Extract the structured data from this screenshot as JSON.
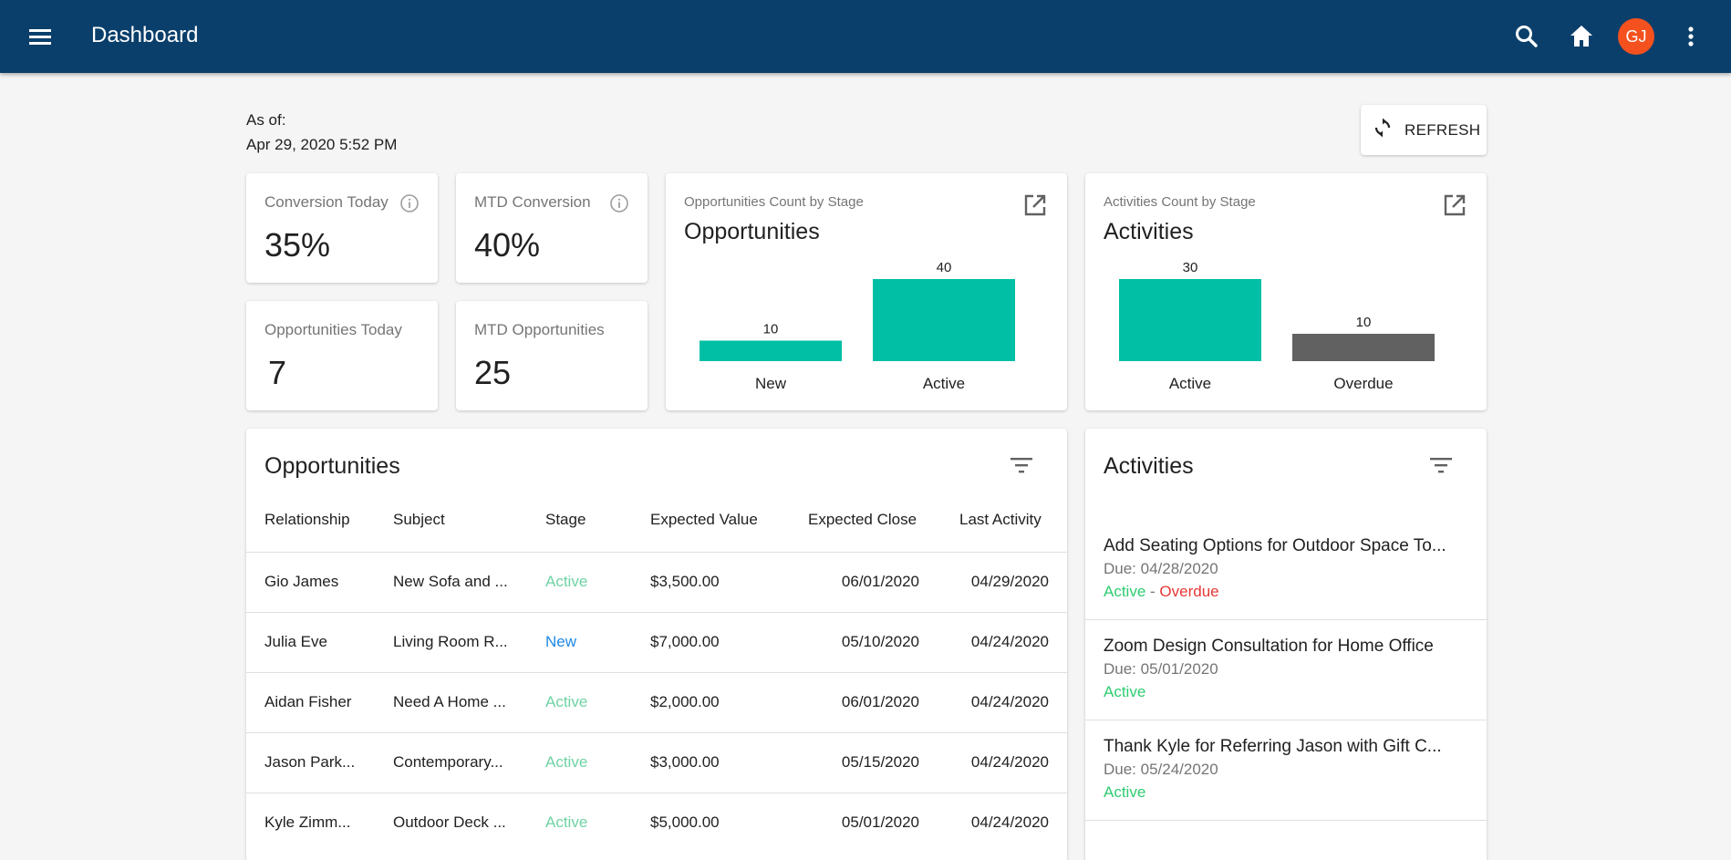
{
  "app": {
    "title": "Dashboard",
    "avatar_initials": "GJ"
  },
  "header": {
    "as_of_label": "As of:",
    "as_of_value": "Apr 29, 2020 5:52 PM",
    "refresh_label": "REFRESH"
  },
  "stats": {
    "conversion_today": {
      "label": "Conversion Today",
      "value": "35%"
    },
    "mtd_conversion": {
      "label": "MTD Conversion",
      "value": "40%"
    },
    "opportunities_today": {
      "label": "Opportunities Today",
      "value": "7"
    },
    "mtd_opportunities": {
      "label": "MTD Opportunities",
      "value": "25"
    }
  },
  "opp_chart": {
    "subtitle": "Opportunities Count by Stage",
    "title": "Opportunities"
  },
  "act_chart": {
    "subtitle": "Activities Count by Stage",
    "title": "Activities"
  },
  "chart_data": [
    {
      "type": "bar",
      "title": "Opportunities",
      "subtitle": "Opportunities Count by Stage",
      "categories": [
        "New",
        "Active"
      ],
      "values": [
        10,
        40
      ],
      "colors": [
        "#00bfa5",
        "#00bfa5"
      ],
      "ylim": [
        0,
        40
      ],
      "grid": false
    },
    {
      "type": "bar",
      "title": "Activities",
      "subtitle": "Activities Count by Stage",
      "categories": [
        "Active",
        "Overdue"
      ],
      "values": [
        30,
        10
      ],
      "colors": [
        "#00bfa5",
        "#616161"
      ],
      "ylim": [
        0,
        30
      ],
      "grid": false
    }
  ],
  "opportunities": {
    "title": "Opportunities",
    "columns": [
      "Relationship",
      "Subject",
      "Stage",
      "Expected Value",
      "Expected Close",
      "Last Activity"
    ],
    "rows": [
      {
        "relationship": "Gio James",
        "subject": "New Sofa and ...",
        "stage": "Active",
        "value": "$3,500.00",
        "close": "06/01/2020",
        "last": "04/29/2020"
      },
      {
        "relationship": "Julia Eve",
        "subject": "Living Room R...",
        "stage": "New",
        "value": "$7,000.00",
        "close": "05/10/2020",
        "last": "04/24/2020"
      },
      {
        "relationship": "Aidan Fisher",
        "subject": "Need A Home ...",
        "stage": "Active",
        "value": "$2,000.00",
        "close": "06/01/2020",
        "last": "04/24/2020"
      },
      {
        "relationship": "Jason Park...",
        "subject": "Contemporary...",
        "stage": "Active",
        "value": "$3,000.00",
        "close": "05/15/2020",
        "last": "04/24/2020"
      },
      {
        "relationship": "Kyle Zimm...",
        "subject": "Outdoor Deck ...",
        "stage": "Active",
        "value": "$5,000.00",
        "close": "05/01/2020",
        "last": "04/24/2020"
      }
    ]
  },
  "activities": {
    "title": "Activities",
    "items": [
      {
        "title": "Add Seating Options for Outdoor Space To...",
        "due": "Due: 04/28/2020",
        "status": "Active",
        "separator": " - ",
        "overdue": "Overdue"
      },
      {
        "title": "Zoom Design Consultation for Home Office",
        "due": "Due: 05/01/2020",
        "status": "Active",
        "separator": "",
        "overdue": ""
      },
      {
        "title": "Thank Kyle for Referring Jason with Gift C...",
        "due": "Due: 05/24/2020",
        "status": "Active",
        "separator": "",
        "overdue": ""
      }
    ]
  },
  "colors": {
    "topbar": "#0b3f6b",
    "accent_teal": "#00bfa5",
    "status_active": "#2ecc71",
    "status_active_light": "#6fd3a4",
    "status_new": "#1e88e5",
    "status_overdue": "#e53935",
    "avatar": "#f4511e",
    "overdue_bar": "#616161"
  }
}
